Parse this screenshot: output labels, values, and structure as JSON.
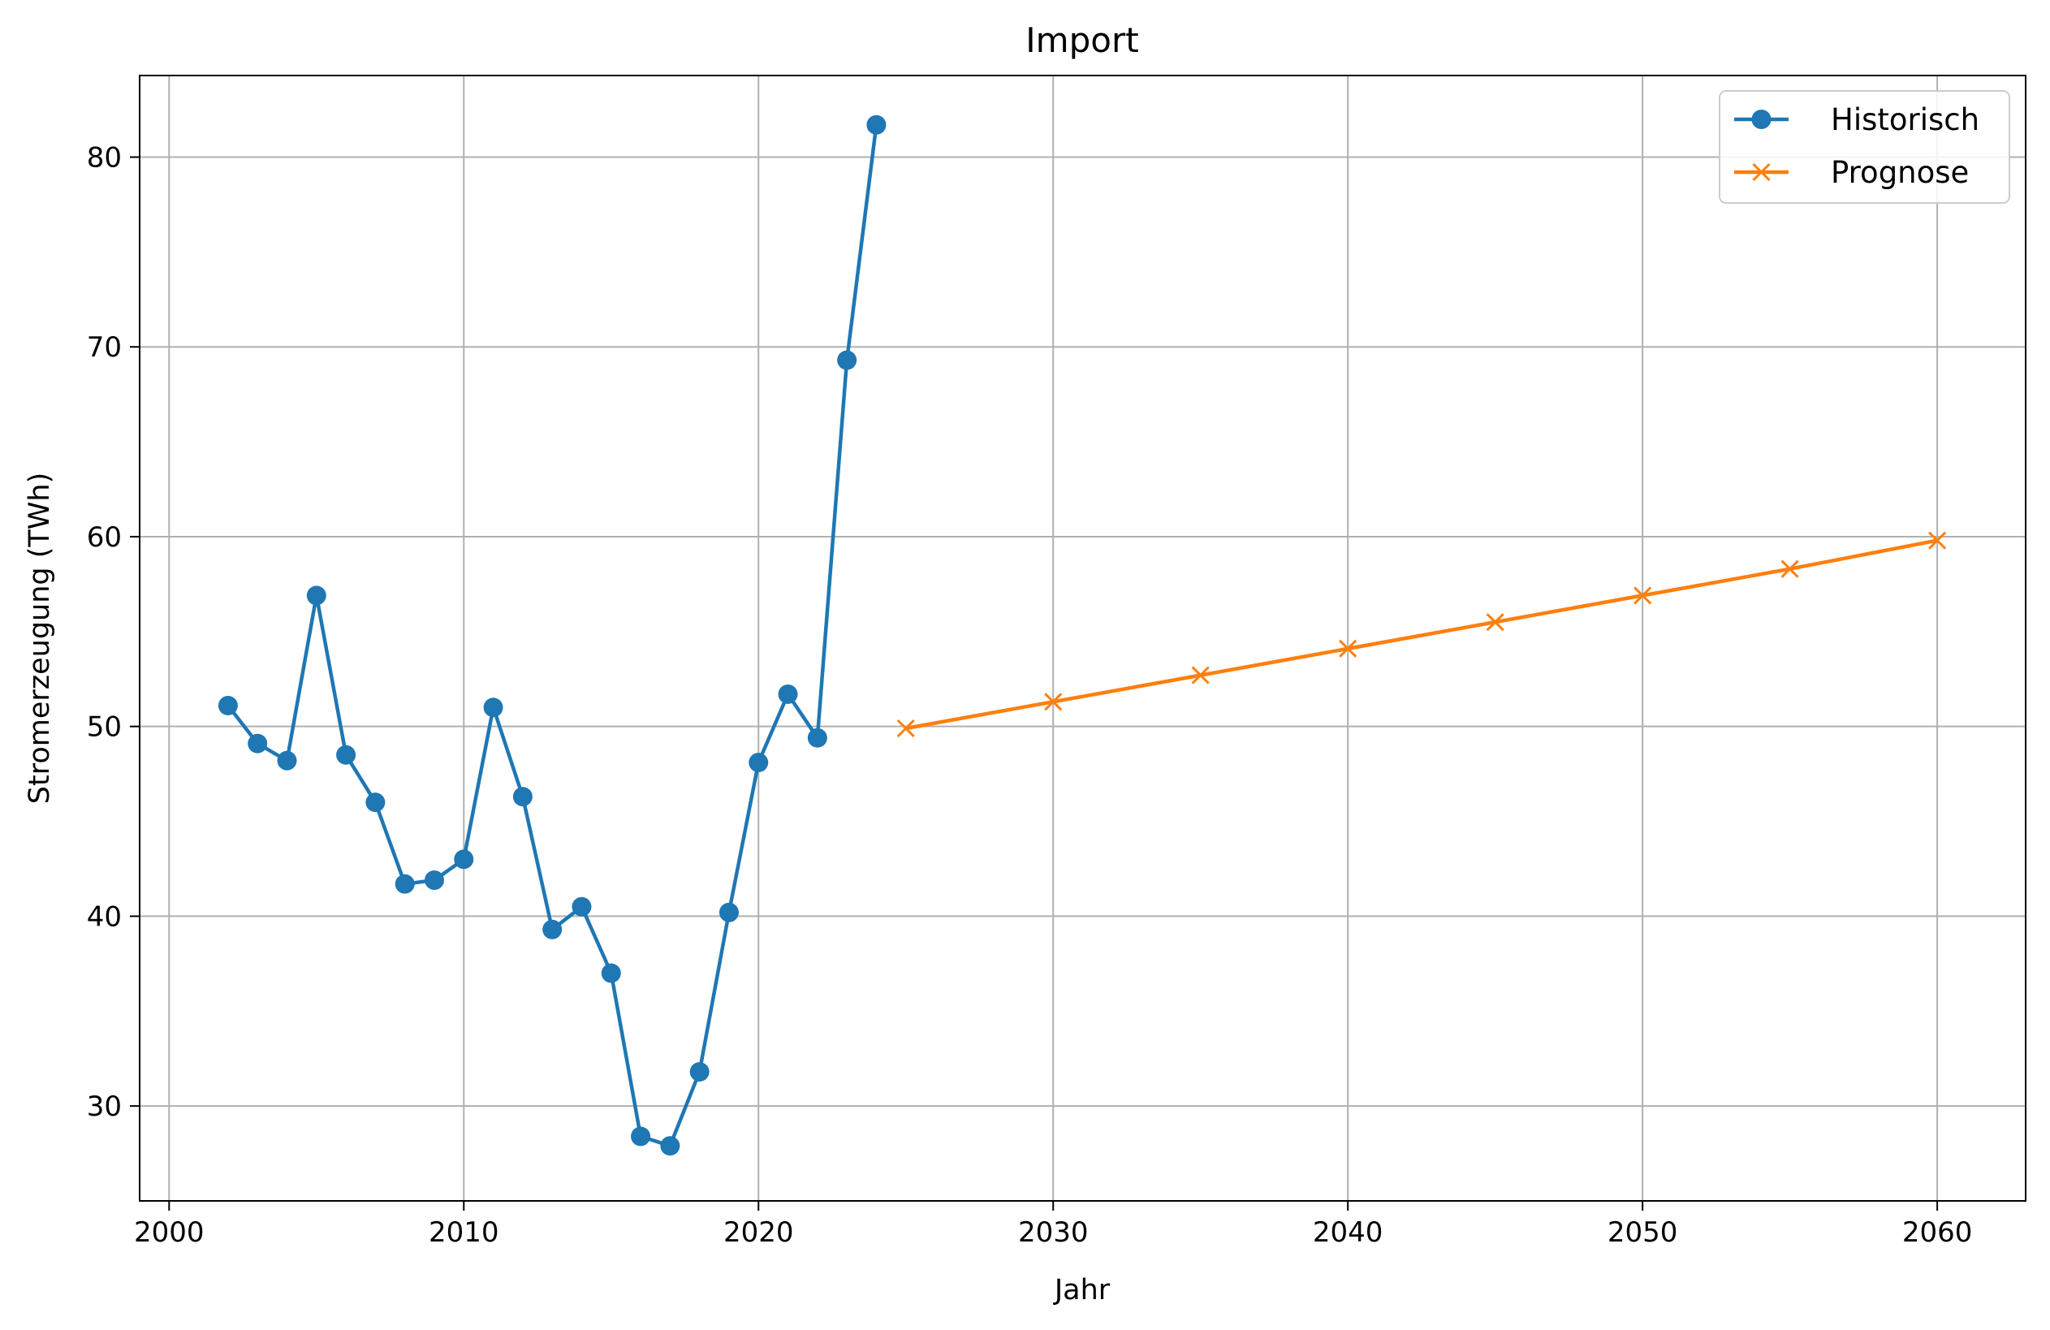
{
  "chart_data": {
    "type": "line",
    "title": "Import",
    "xlabel": "Jahr",
    "ylabel": "Stromerzeugung (TWh)",
    "xlim": [
      1999,
      2063
    ],
    "ylim": [
      25,
      84.3
    ],
    "xticks": [
      2000,
      2010,
      2020,
      2030,
      2040,
      2050,
      2060
    ],
    "yticks": [
      30,
      40,
      50,
      60,
      70,
      80
    ],
    "grid": true,
    "legend_position": "top-right",
    "series": [
      {
        "name": "Historisch",
        "color": "#1f77b4",
        "marker": "circle",
        "x": [
          2002,
          2003,
          2004,
          2005,
          2006,
          2007,
          2008,
          2009,
          2010,
          2011,
          2012,
          2013,
          2014,
          2015,
          2016,
          2017,
          2018,
          2019,
          2020,
          2021,
          2022,
          2023,
          2024
        ],
        "y": [
          51.1,
          49.1,
          48.2,
          56.9,
          48.5,
          46.0,
          41.7,
          41.9,
          43.0,
          51.0,
          46.3,
          39.3,
          40.5,
          37.0,
          28.4,
          27.9,
          31.8,
          40.2,
          48.1,
          51.7,
          49.4,
          69.3,
          81.7
        ]
      },
      {
        "name": "Prognose",
        "color": "#ff7f0e",
        "marker": "x",
        "x": [
          2025,
          2030,
          2035,
          2040,
          2045,
          2050,
          2055,
          2060
        ],
        "y": [
          49.9,
          51.3,
          52.7,
          54.1,
          55.5,
          56.9,
          58.3,
          59.8
        ]
      }
    ]
  }
}
